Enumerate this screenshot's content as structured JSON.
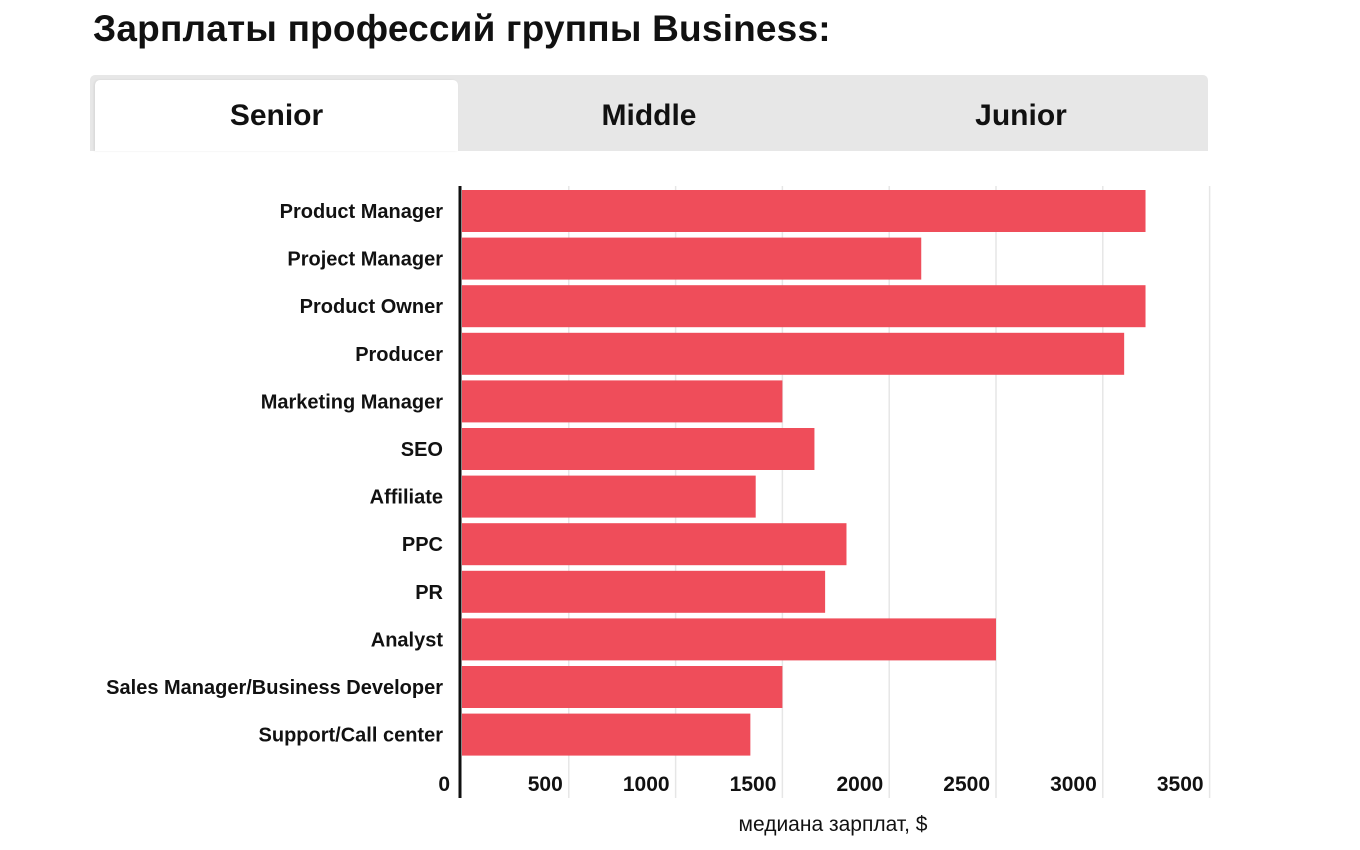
{
  "title": "Зарплаты профессий группы Business:",
  "tabs": [
    {
      "label": "Senior",
      "active": true
    },
    {
      "label": "Middle",
      "active": false
    },
    {
      "label": "Junior",
      "active": false
    }
  ],
  "colors": {
    "bar": "#ef4d5a",
    "tab_bg": "#e7e7e7",
    "active_tab_bg": "#ffffff",
    "grid": "#e6e6e6",
    "axis": "#111111"
  },
  "chart_data": {
    "type": "bar",
    "orientation": "horizontal",
    "title": "",
    "xlabel": "медиана зарплат, $",
    "ylabel": "",
    "xlim": [
      0,
      3500
    ],
    "ticks": [
      0,
      500,
      1000,
      1500,
      2000,
      2500,
      3000,
      3500
    ],
    "grid": true,
    "categories": [
      "Product Manager",
      "Project Manager",
      "Product Owner",
      "Producer",
      "Marketing Manager",
      "SEO",
      "Affiliate",
      "PPC",
      "PR",
      "Analyst",
      "Sales Manager/Business Developer",
      "Support/Call center"
    ],
    "values": [
      3200,
      2150,
      3200,
      3100,
      1500,
      1650,
      1375,
      1800,
      1700,
      2500,
      1500,
      1350
    ]
  }
}
